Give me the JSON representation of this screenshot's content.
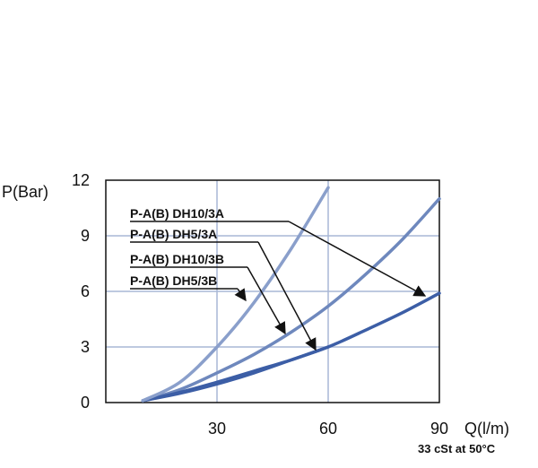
{
  "chart_data": {
    "type": "line",
    "xlabel": "Q(l/m)",
    "ylabel": "P(Bar)",
    "note": "33 cSt at 50°C",
    "xlim": [
      0,
      90
    ],
    "ylim": [
      0,
      12
    ],
    "xticks": [
      30,
      60,
      90
    ],
    "yticks": [
      0,
      3,
      6,
      9,
      12
    ],
    "grid": true,
    "series": [
      {
        "name": "P-A(B) DH10/3A",
        "color": "#3c5ea6",
        "x": [
          10,
          20,
          30,
          40,
          50,
          60,
          70,
          80,
          90
        ],
        "y": [
          0.1,
          0.5,
          1.0,
          1.6,
          2.3,
          3.0,
          3.9,
          4.85,
          5.9
        ]
      },
      {
        "name": "P-A(B) DH5/3A",
        "color": "#6e88bd",
        "x": [
          10,
          20,
          30,
          40,
          50,
          60,
          70,
          80,
          90
        ],
        "y": [
          0.1,
          0.7,
          1.6,
          2.6,
          3.8,
          5.2,
          6.9,
          8.8,
          11.0
        ]
      },
      {
        "name": "P-A(B) DH10/3B",
        "color": "#3c5ea6",
        "x": [
          10,
          20,
          30,
          40,
          50,
          60
        ],
        "y": [
          0.1,
          0.55,
          1.1,
          1.7,
          2.3,
          3.0
        ]
      },
      {
        "name": "P-A(B) DH5/3B",
        "color": "#8a9fcb",
        "x": [
          10,
          20,
          30,
          40,
          50,
          60
        ],
        "y": [
          0.1,
          1.1,
          3.0,
          5.4,
          8.3,
          11.6
        ]
      }
    ]
  }
}
